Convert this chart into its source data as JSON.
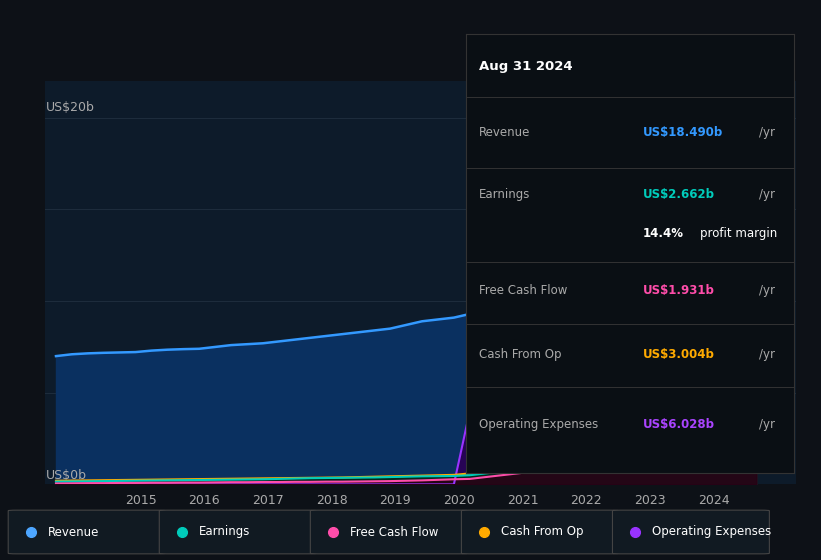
{
  "bg_color": "#0d1117",
  "plot_bg_color": "#0d1b2a",
  "ylim": [
    0,
    22
  ],
  "xlim": [
    2013.5,
    2025.3
  ],
  "xticks": [
    2015,
    2016,
    2017,
    2018,
    2019,
    2020,
    2021,
    2022,
    2023,
    2024
  ],
  "series": {
    "revenue": {
      "line_color": "#3399ff",
      "fill_color": "#0a3060",
      "label": "Revenue",
      "legend_color": "#4da6ff"
    },
    "earnings": {
      "line_color": "#00ccbb",
      "fill_color": "#002a1e",
      "label": "Earnings",
      "legend_color": "#00ccbb"
    },
    "free_cash_flow": {
      "line_color": "#ff4daa",
      "fill_color": "#2a0015",
      "label": "Free Cash Flow",
      "legend_color": "#ff4daa"
    },
    "cash_from_op": {
      "line_color": "#ffaa00",
      "fill_color": "#3a2200",
      "label": "Cash From Op",
      "legend_color": "#ffaa00"
    },
    "operating_expenses": {
      "line_color": "#9933ff",
      "fill_color": "#2a0055",
      "label": "Operating Expenses",
      "legend_color": "#9933ff"
    }
  },
  "years": [
    2013.67,
    2013.92,
    2014.17,
    2014.42,
    2014.67,
    2014.92,
    2015.17,
    2015.42,
    2015.67,
    2015.92,
    2016.17,
    2016.42,
    2016.67,
    2016.92,
    2017.17,
    2017.42,
    2017.67,
    2017.92,
    2018.17,
    2018.42,
    2018.67,
    2018.92,
    2019.17,
    2019.42,
    2019.67,
    2019.92,
    2020.17,
    2020.42,
    2020.67,
    2020.92,
    2021.17,
    2021.42,
    2021.67,
    2021.92,
    2022.17,
    2022.42,
    2022.67,
    2022.92,
    2023.17,
    2023.42,
    2023.67,
    2023.92,
    2024.17,
    2024.42,
    2024.67
  ],
  "revenue_data": [
    7.0,
    7.1,
    7.15,
    7.18,
    7.2,
    7.22,
    7.3,
    7.35,
    7.38,
    7.4,
    7.5,
    7.6,
    7.65,
    7.7,
    7.8,
    7.9,
    8.0,
    8.1,
    8.2,
    8.3,
    8.4,
    8.5,
    8.7,
    8.9,
    9.0,
    9.1,
    9.3,
    9.6,
    10.0,
    10.5,
    11.0,
    11.5,
    12.0,
    12.5,
    13.5,
    14.0,
    14.5,
    15.0,
    15.5,
    16.0,
    16.5,
    17.0,
    17.5,
    18.0,
    18.49
  ],
  "earnings_data": [
    0.15,
    0.16,
    0.17,
    0.18,
    0.19,
    0.2,
    0.21,
    0.22,
    0.23,
    0.24,
    0.25,
    0.26,
    0.27,
    0.28,
    0.3,
    0.32,
    0.34,
    0.35,
    0.36,
    0.37,
    0.38,
    0.4,
    0.42,
    0.44,
    0.45,
    0.46,
    0.5,
    0.6,
    0.7,
    0.85,
    1.0,
    1.2,
    1.4,
    1.6,
    1.8,
    2.0,
    2.1,
    2.2,
    2.3,
    2.4,
    2.5,
    2.55,
    2.6,
    2.63,
    2.662
  ],
  "free_cash_flow_data": [
    0.05,
    0.06,
    0.07,
    0.07,
    0.08,
    0.08,
    0.09,
    0.09,
    0.1,
    0.1,
    0.11,
    0.12,
    0.12,
    0.13,
    0.13,
    0.14,
    0.14,
    0.15,
    0.15,
    0.16,
    0.17,
    0.18,
    0.2,
    0.22,
    0.25,
    0.28,
    0.3,
    0.4,
    0.5,
    0.6,
    0.7,
    0.8,
    0.9,
    1.0,
    1.1,
    1.2,
    1.3,
    1.4,
    1.5,
    1.6,
    1.7,
    1.8,
    1.85,
    1.9,
    1.931
  ],
  "cash_from_op_data": [
    0.2,
    0.21,
    0.22,
    0.23,
    0.24,
    0.25,
    0.26,
    0.27,
    0.28,
    0.29,
    0.3,
    0.31,
    0.32,
    0.33,
    0.34,
    0.35,
    0.36,
    0.37,
    0.38,
    0.4,
    0.42,
    0.44,
    0.46,
    0.48,
    0.5,
    0.52,
    0.6,
    0.75,
    0.9,
    1.1,
    1.3,
    1.5,
    1.7,
    1.9,
    2.1,
    2.3,
    2.5,
    2.7,
    2.8,
    2.9,
    2.95,
    3.0,
    3.0,
    3.0,
    3.004
  ],
  "operating_expenses_data": [
    0.0,
    0.0,
    0.0,
    0.0,
    0.0,
    0.0,
    0.0,
    0.0,
    0.0,
    0.0,
    0.0,
    0.0,
    0.0,
    0.0,
    0.0,
    0.0,
    0.0,
    0.0,
    0.0,
    0.0,
    0.0,
    0.0,
    0.0,
    0.0,
    0.0,
    0.0,
    4.0,
    4.3,
    4.5,
    4.7,
    4.8,
    5.0,
    5.2,
    5.4,
    5.5,
    5.6,
    5.7,
    5.8,
    5.85,
    5.9,
    5.95,
    6.0,
    6.0,
    6.02,
    6.028
  ],
  "info_box": {
    "date": "Aug 31 2024",
    "revenue_label": "Revenue",
    "revenue_val": "US$18.490b",
    "revenue_color": "#3399ff",
    "earnings_label": "Earnings",
    "earnings_val": "US$2.662b",
    "earnings_color": "#00ccbb",
    "profit_margin": "14.4%",
    "profit_margin_text": " profit margin",
    "fcf_label": "Free Cash Flow",
    "fcf_val": "US$1.931b",
    "fcf_color": "#ff4daa",
    "cash_op_label": "Cash From Op",
    "cash_op_val": "US$3.004b",
    "cash_op_color": "#ffaa00",
    "op_exp_label": "Operating Expenses",
    "op_exp_val": "US$6.028b",
    "op_exp_color": "#aa44ff"
  },
  "grid_color": "#1e2d3d",
  "text_color": "#aaaaaa",
  "text_color_bright": "#ffffff",
  "divider_color": "#333333",
  "box_bg": "#0a0f14",
  "box_border": "#333333"
}
